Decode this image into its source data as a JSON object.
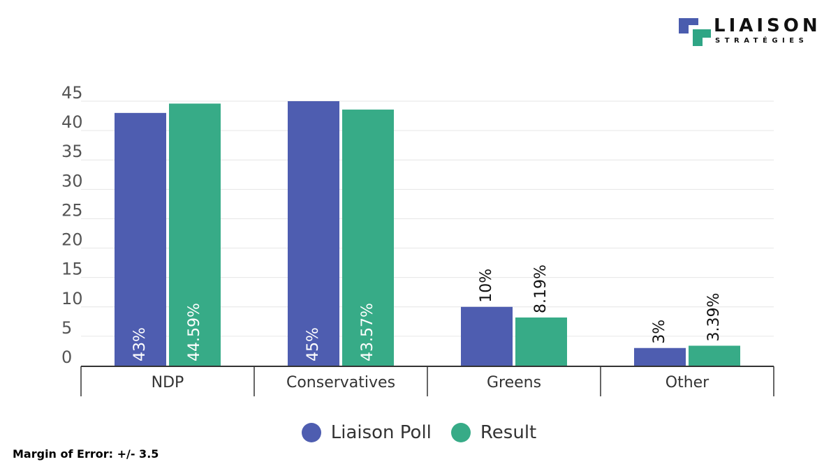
{
  "brand": {
    "name": "LIAISON",
    "subtitle": "STRATÉGIES",
    "colors": {
      "blue": "#4a5cae",
      "green": "#2fa585"
    }
  },
  "chart_data": {
    "type": "bar",
    "categories": [
      "NDP",
      "Conservatives",
      "Greens",
      "Other"
    ],
    "series": [
      {
        "name": "Liaison Poll",
        "color": "#4e5db0",
        "values": [
          43,
          45,
          10,
          3
        ],
        "labels": [
          "43%",
          "45%",
          "10%",
          "3%"
        ]
      },
      {
        "name": "Result",
        "color": "#37ab87",
        "values": [
          44.59,
          43.57,
          8.19,
          3.39
        ],
        "labels": [
          "44.59%",
          "43.57%",
          "8.19%",
          "3.39%"
        ]
      }
    ],
    "ylim": [
      0,
      45
    ],
    "yticks": [
      0,
      5,
      10,
      15,
      20,
      25,
      30,
      35,
      40,
      45
    ],
    "grid": true,
    "legend_position": "bottom",
    "data_labels": "rotated, inside bar when tall, above bar when short"
  },
  "footer": {
    "margin_of_error": "Margin of Error: +/- 3.5"
  }
}
